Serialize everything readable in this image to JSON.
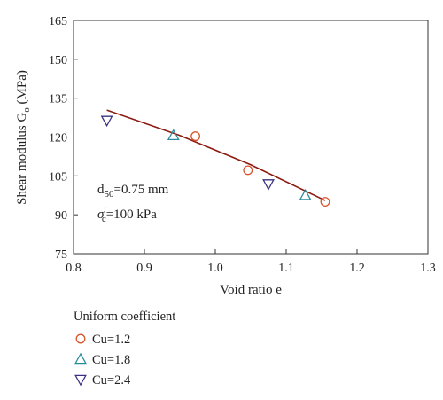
{
  "chart_data": {
    "type": "scatter",
    "title": "",
    "xlabel": "Void ratio e",
    "ylabel_main": "Shear modulus G",
    "ylabel_sub": "o",
    "ylabel_unit": " (MPa)",
    "xlim": [
      0.8,
      1.3
    ],
    "ylim": [
      75,
      165
    ],
    "xticks": [
      0.8,
      0.9,
      1.0,
      1.1,
      1.2,
      1.3
    ],
    "xtick_labels": [
      "0.8",
      "0.9",
      "1.0",
      "1.1",
      "1.2",
      "1.3"
    ],
    "yticks": [
      75,
      90,
      105,
      120,
      135,
      150,
      165
    ],
    "ytick_labels": [
      "75",
      "90",
      "105",
      "120",
      "135",
      "150",
      "165"
    ],
    "grid": false,
    "legend_title": "Uniform coefficient",
    "legend_position": "bottom-left",
    "series": [
      {
        "name": "Cu=1.2",
        "marker": "circle",
        "color": "#d9542b",
        "points": [
          {
            "x": 0.972,
            "y": 120.3
          },
          {
            "x": 1.046,
            "y": 107.2
          },
          {
            "x": 1.155,
            "y": 95.0
          }
        ]
      },
      {
        "name": "Cu=1.8",
        "marker": "triangle-up",
        "color": "#2a8c9e",
        "points": [
          {
            "x": 0.941,
            "y": 120.6
          },
          {
            "x": 1.127,
            "y": 97.5
          }
        ]
      },
      {
        "name": "Cu=2.4",
        "marker": "triangle-down",
        "color": "#3a3280",
        "points": [
          {
            "x": 0.847,
            "y": 126.4
          },
          {
            "x": 1.075,
            "y": 101.9
          }
        ]
      }
    ],
    "fit_line": {
      "color": "#8b1a10",
      "points": [
        [
          0.847,
          130.4
        ],
        [
          0.95,
          120.6
        ],
        [
          1.05,
          109.3
        ],
        [
          1.155,
          95.5
        ]
      ]
    },
    "annotations": {
      "d50_main": "d",
      "d50_sub": "50",
      "d50_rest": "=0.75 mm",
      "sigma_main": "σ",
      "sigma_sup": "′",
      "sigma_sub": "c",
      "sigma_rest": "=100 kPa"
    }
  }
}
